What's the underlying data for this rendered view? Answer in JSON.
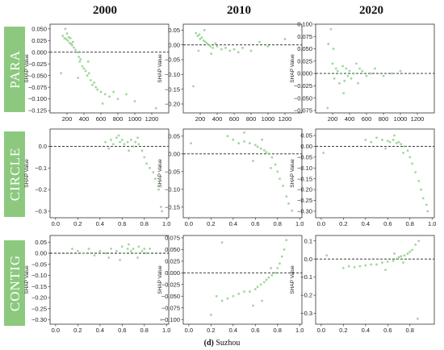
{
  "colors": {
    "point": "#8fd08a",
    "row_box": "#8cc97f",
    "zero_line": "#222222"
  },
  "caption": {
    "bold": "(d)",
    "text": " Suzhou"
  },
  "columns": [
    "2000",
    "2010",
    "2020"
  ],
  "rows": [
    "PARA",
    "CIRCLE",
    "CONTIG"
  ],
  "chart_data": [
    {
      "type": "scatter",
      "row": "PARA",
      "year": "2000",
      "ylabel": "SHAP Value",
      "xlim": [
        0,
        1400
      ],
      "ylim": [
        -0.13,
        0.06
      ],
      "xticks": [
        200,
        400,
        600,
        800,
        1000,
        1200
      ],
      "yticks": [
        0.05,
        0.025,
        0.0,
        -0.025,
        -0.05,
        -0.075,
        -0.1,
        -0.125
      ],
      "xtick_labels": [
        "200",
        "400",
        "600",
        "800",
        "1000",
        "1200"
      ],
      "ytick_labels": [
        "0.050",
        "0.025",
        "0.000",
        "−0.025",
        "−0.050",
        "−0.075",
        "−0.100",
        "−0.125"
      ],
      "points": [
        [
          150,
          0.035
        ],
        [
          170,
          0.03
        ],
        [
          190,
          0.028
        ],
        [
          200,
          0.04
        ],
        [
          210,
          0.025
        ],
        [
          220,
          0.032
        ],
        [
          230,
          0.02
        ],
        [
          240,
          0.03
        ],
        [
          250,
          0.018
        ],
        [
          260,
          0.015
        ],
        [
          270,
          0.022
        ],
        [
          280,
          0.01
        ],
        [
          300,
          0.005
        ],
        [
          320,
          0.0
        ],
        [
          340,
          -0.01
        ],
        [
          350,
          -0.02
        ],
        [
          360,
          -0.015
        ],
        [
          380,
          -0.03
        ],
        [
          400,
          -0.035
        ],
        [
          420,
          -0.04
        ],
        [
          440,
          -0.05
        ],
        [
          460,
          -0.045
        ],
        [
          480,
          -0.06
        ],
        [
          500,
          -0.07
        ],
        [
          520,
          -0.065
        ],
        [
          540,
          -0.075
        ],
        [
          560,
          -0.08
        ],
        [
          600,
          -0.085
        ],
        [
          650,
          -0.09
        ],
        [
          700,
          -0.095
        ],
        [
          750,
          -0.085
        ],
        [
          800,
          -0.1
        ],
        [
          900,
          -0.09
        ],
        [
          1000,
          -0.105
        ],
        [
          1250,
          -0.12
        ],
        [
          130,
          -0.045
        ],
        [
          180,
          0.05
        ],
        [
          330,
          -0.055
        ],
        [
          450,
          -0.02
        ],
        [
          620,
          -0.11
        ]
      ]
    },
    {
      "type": "scatter",
      "row": "PARA",
      "year": "2010",
      "ylabel": "SHAP Value",
      "xlim": [
        0,
        1400
      ],
      "ylim": [
        -0.23,
        0.07
      ],
      "xticks": [
        200,
        400,
        600,
        800,
        1000,
        1200
      ],
      "yticks": [
        0.05,
        0.0,
        -0.05,
        -0.1,
        -0.15,
        -0.2
      ],
      "xtick_labels": [
        "200",
        "400",
        "600",
        "800",
        "1000",
        "1200"
      ],
      "ytick_labels": [
        "0.05",
        "0.00",
        "−0.05",
        "−0.10",
        "−0.15",
        "−0.20"
      ],
      "points": [
        [
          150,
          0.04
        ],
        [
          170,
          0.03
        ],
        [
          190,
          0.035
        ],
        [
          200,
          0.02
        ],
        [
          220,
          0.025
        ],
        [
          240,
          0.015
        ],
        [
          260,
          0.01
        ],
        [
          280,
          0.005
        ],
        [
          300,
          0.0
        ],
        [
          320,
          -0.005
        ],
        [
          350,
          -0.01
        ],
        [
          380,
          0.005
        ],
        [
          400,
          -0.005
        ],
        [
          450,
          -0.015
        ],
        [
          500,
          -0.01
        ],
        [
          550,
          -0.02
        ],
        [
          600,
          -0.015
        ],
        [
          700,
          -0.01
        ],
        [
          800,
          -0.02
        ],
        [
          900,
          0.01
        ],
        [
          1000,
          -0.005
        ],
        [
          1200,
          0.02
        ],
        [
          120,
          -0.14
        ],
        [
          250,
          0.05
        ],
        [
          330,
          -0.03
        ],
        [
          650,
          -0.025
        ],
        [
          180,
          -0.02
        ]
      ]
    },
    {
      "type": "scatter",
      "row": "PARA",
      "year": "2020",
      "ylabel": "SHAP Value",
      "xlim": [
        0,
        1400
      ],
      "ylim": [
        -0.08,
        0.1
      ],
      "xticks": [
        200,
        400,
        600,
        800,
        1000,
        1200
      ],
      "yticks": [
        0.1,
        0.075,
        0.05,
        0.025,
        0.0,
        -0.025,
        -0.05,
        -0.075
      ],
      "xtick_labels": [
        "200",
        "400",
        "600",
        "800",
        "1000",
        "1200"
      ],
      "ytick_labels": [
        "0.100",
        "0.075",
        "0.050",
        "0.025",
        "0.000",
        "−0.025",
        "−0.050",
        "−0.075"
      ],
      "points": [
        [
          150,
          0.06
        ],
        [
          180,
          0.09
        ],
        [
          200,
          0.02
        ],
        [
          220,
          -0.01
        ],
        [
          240,
          0.01
        ],
        [
          260,
          0.005
        ],
        [
          280,
          -0.02
        ],
        [
          300,
          0.0
        ],
        [
          320,
          0.015
        ],
        [
          340,
          -0.015
        ],
        [
          360,
          0.01
        ],
        [
          380,
          -0.005
        ],
        [
          400,
          0.005
        ],
        [
          420,
          -0.01
        ],
        [
          450,
          0.0
        ],
        [
          480,
          0.02
        ],
        [
          500,
          -0.02
        ],
        [
          520,
          0.01
        ],
        [
          550,
          0.005
        ],
        [
          600,
          -0.005
        ],
        [
          650,
          0.0
        ],
        [
          700,
          0.01
        ],
        [
          800,
          -0.005
        ],
        [
          900,
          0.0
        ],
        [
          1000,
          0.005
        ],
        [
          1300,
          0.0
        ],
        [
          140,
          -0.07
        ],
        [
          210,
          0.05
        ],
        [
          330,
          -0.04
        ]
      ]
    },
    {
      "type": "scatter",
      "row": "CIRCLE",
      "year": "2000",
      "ylabel": "SHAP Value",
      "xlim": [
        -0.05,
        1.02
      ],
      "ylim": [
        -0.33,
        0.08
      ],
      "xticks": [
        0.0,
        0.2,
        0.4,
        0.6,
        0.8,
        1.0
      ],
      "yticks": [
        0.0,
        -0.1,
        -0.2,
        -0.3
      ],
      "xtick_labels": [
        "0.0",
        "0.2",
        "0.4",
        "0.6",
        "0.8",
        "1.0"
      ],
      "ytick_labels": [
        "0.0",
        "−0.1",
        "−0.2",
        "−0.3"
      ],
      "points": [
        [
          0.45,
          0.02
        ],
        [
          0.5,
          0.03
        ],
        [
          0.52,
          0.01
        ],
        [
          0.55,
          0.04
        ],
        [
          0.58,
          0.02
        ],
        [
          0.6,
          0.03
        ],
        [
          0.62,
          0.01
        ],
        [
          0.65,
          0.02
        ],
        [
          0.68,
          0.03
        ],
        [
          0.7,
          0.0
        ],
        [
          0.72,
          0.02
        ],
        [
          0.75,
          0.01
        ],
        [
          0.78,
          -0.02
        ],
        [
          0.8,
          -0.05
        ],
        [
          0.82,
          -0.08
        ],
        [
          0.85,
          -0.1
        ],
        [
          0.88,
          -0.12
        ],
        [
          0.9,
          -0.15
        ],
        [
          0.93,
          -0.2
        ],
        [
          0.95,
          -0.28
        ],
        [
          0.96,
          -0.3
        ],
        [
          0.48,
          -0.01
        ],
        [
          0.57,
          0.05
        ],
        [
          0.66,
          -0.02
        ],
        [
          0.74,
          0.04
        ]
      ]
    },
    {
      "type": "scatter",
      "row": "CIRCLE",
      "year": "2010",
      "ylabel": "SHAP Value",
      "xlim": [
        -0.05,
        1.02
      ],
      "ylim": [
        -0.18,
        0.07
      ],
      "xticks": [
        0.0,
        0.2,
        0.4,
        0.6,
        0.8,
        1.0
      ],
      "yticks": [
        0.05,
        0.0,
        -0.05,
        -0.1,
        -0.15
      ],
      "xtick_labels": [
        "0.0",
        "0.2",
        "0.4",
        "0.6",
        "0.8",
        "1.0"
      ],
      "ytick_labels": [
        "0.05",
        "0.00",
        "−0.05",
        "−0.10",
        "−0.15"
      ],
      "points": [
        [
          0.35,
          0.05
        ],
        [
          0.4,
          0.04
        ],
        [
          0.45,
          0.03
        ],
        [
          0.5,
          0.035
        ],
        [
          0.55,
          0.03
        ],
        [
          0.6,
          0.025
        ],
        [
          0.62,
          0.02
        ],
        [
          0.65,
          0.015
        ],
        [
          0.68,
          0.01
        ],
        [
          0.7,
          0.005
        ],
        [
          0.72,
          0.0
        ],
        [
          0.75,
          -0.01
        ],
        [
          0.78,
          -0.03
        ],
        [
          0.8,
          -0.05
        ],
        [
          0.82,
          -0.07
        ],
        [
          0.85,
          -0.09
        ],
        [
          0.88,
          -0.12
        ],
        [
          0.9,
          -0.14
        ],
        [
          0.93,
          -0.16
        ],
        [
          0.02,
          0.03
        ],
        [
          0.5,
          0.06
        ],
        [
          0.58,
          -0.02
        ],
        [
          0.66,
          0.04
        ],
        [
          0.74,
          -0.04
        ]
      ]
    },
    {
      "type": "scatter",
      "row": "CIRCLE",
      "year": "2020",
      "ylabel": "SHAP Value",
      "xlim": [
        -0.05,
        1.02
      ],
      "ylim": [
        -0.33,
        0.08
      ],
      "xticks": [
        0.0,
        0.2,
        0.4,
        0.6,
        0.8,
        1.0
      ],
      "yticks": [
        0.05,
        0.0,
        -0.05,
        -0.1,
        -0.15,
        -0.2,
        -0.25,
        -0.3
      ],
      "xtick_labels": [
        "0.0",
        "0.2",
        "0.4",
        "0.6",
        "0.8",
        "1.0"
      ],
      "ytick_labels": [
        "0.05",
        "0.00",
        "−0.05",
        "−0.10",
        "−0.15",
        "−0.20",
        "−0.25",
        "−0.30"
      ],
      "points": [
        [
          0.4,
          0.03
        ],
        [
          0.45,
          0.02
        ],
        [
          0.5,
          0.04
        ],
        [
          0.55,
          0.03
        ],
        [
          0.6,
          0.025
        ],
        [
          0.62,
          0.02
        ],
        [
          0.65,
          0.03
        ],
        [
          0.68,
          0.015
        ],
        [
          0.7,
          0.02
        ],
        [
          0.72,
          0.01
        ],
        [
          0.75,
          0.0
        ],
        [
          0.78,
          -0.02
        ],
        [
          0.8,
          -0.05
        ],
        [
          0.82,
          -0.08
        ],
        [
          0.85,
          -0.12
        ],
        [
          0.88,
          -0.16
        ],
        [
          0.9,
          -0.2
        ],
        [
          0.92,
          -0.24
        ],
        [
          0.95,
          -0.27
        ],
        [
          0.96,
          -0.3
        ],
        [
          0.02,
          -0.03
        ],
        [
          0.58,
          -0.01
        ],
        [
          0.66,
          0.05
        ],
        [
          0.74,
          -0.03
        ]
      ]
    },
    {
      "type": "scatter",
      "row": "CONTIG",
      "year": "2000",
      "ylabel": "SHAP Value",
      "xlim": [
        -0.05,
        1.02
      ],
      "ylim": [
        -0.32,
        0.08
      ],
      "xticks": [
        0.0,
        0.2,
        0.4,
        0.6,
        0.8,
        1.0
      ],
      "yticks": [
        0.05,
        0.0,
        -0.05,
        -0.1,
        -0.15,
        -0.2,
        -0.25,
        -0.3
      ],
      "xtick_labels": [
        "0.0",
        "0.2",
        "0.4",
        "0.6",
        "0.8",
        "1.0"
      ],
      "ytick_labels": [
        "0.05",
        "0.00",
        "−0.05",
        "−0.10",
        "−0.15",
        "−0.20",
        "−0.25",
        "−0.30"
      ],
      "points": [
        [
          0.2,
          0.01
        ],
        [
          0.25,
          0.0
        ],
        [
          0.3,
          0.02
        ],
        [
          0.35,
          -0.01
        ],
        [
          0.4,
          0.01
        ],
        [
          0.45,
          0.0
        ],
        [
          0.5,
          0.02
        ],
        [
          0.55,
          0.01
        ],
        [
          0.6,
          0.03
        ],
        [
          0.62,
          0.0
        ],
        [
          0.65,
          0.02
        ],
        [
          0.68,
          0.01
        ],
        [
          0.7,
          0.02
        ],
        [
          0.72,
          0.0
        ],
        [
          0.75,
          0.03
        ],
        [
          0.78,
          0.01
        ],
        [
          0.8,
          0.02
        ],
        [
          0.82,
          0.0
        ],
        [
          0.85,
          0.02
        ],
        [
          0.58,
          -0.03
        ],
        [
          0.66,
          0.04
        ],
        [
          0.74,
          -0.02
        ],
        [
          0.95,
          -0.3
        ],
        [
          0.15,
          0.02
        ],
        [
          0.48,
          -0.02
        ]
      ]
    },
    {
      "type": "scatter",
      "row": "CONTIG",
      "year": "2010",
      "ylabel": "SHAP Value",
      "xlim": [
        -0.05,
        1.02
      ],
      "ylim": [
        -0.11,
        0.08
      ],
      "xticks": [
        0.0,
        0.2,
        0.4,
        0.6,
        0.8,
        1.0
      ],
      "yticks": [
        0.075,
        0.05,
        0.025,
        0.0,
        -0.025,
        -0.05,
        -0.075,
        -0.1
      ],
      "xtick_labels": [
        "0.0",
        "0.2",
        "0.4",
        "0.6",
        "0.8",
        "1.0"
      ],
      "ytick_labels": [
        "0.075",
        "0.050",
        "0.025",
        "0.000",
        "−0.025",
        "−0.050",
        "−0.075",
        "−0.100"
      ],
      "points": [
        [
          0.25,
          -0.05
        ],
        [
          0.3,
          -0.06
        ],
        [
          0.35,
          -0.055
        ],
        [
          0.4,
          -0.05
        ],
        [
          0.45,
          -0.045
        ],
        [
          0.5,
          -0.04
        ],
        [
          0.55,
          -0.04
        ],
        [
          0.6,
          -0.035
        ],
        [
          0.62,
          -0.03
        ],
        [
          0.65,
          -0.025
        ],
        [
          0.68,
          -0.02
        ],
        [
          0.7,
          -0.015
        ],
        [
          0.72,
          -0.01
        ],
        [
          0.75,
          -0.005
        ],
        [
          0.78,
          0.0
        ],
        [
          0.8,
          0.01
        ],
        [
          0.82,
          0.02
        ],
        [
          0.84,
          0.035
        ],
        [
          0.86,
          0.05
        ],
        [
          0.88,
          0.07
        ],
        [
          0.3,
          0.065
        ],
        [
          0.2,
          -0.09
        ],
        [
          0.58,
          -0.07
        ],
        [
          0.66,
          -0.06
        ],
        [
          0.74,
          0.01
        ]
      ]
    },
    {
      "type": "scatter",
      "row": "CONTIG",
      "year": "2020",
      "ylabel": "SHAP Value",
      "xlim": [
        -0.05,
        1.02
      ],
      "ylim": [
        -0.36,
        0.13
      ],
      "xticks": [
        0.0,
        0.2,
        0.4,
        0.6,
        0.8
      ],
      "yticks": [
        0.1,
        0.0,
        -0.1,
        -0.2,
        -0.3
      ],
      "xtick_labels": [
        "0.0",
        "0.2",
        "0.4",
        "0.6",
        "0.8"
      ],
      "ytick_labels": [
        "0.1",
        "0.0",
        "−0.1",
        "−0.2",
        "−0.3"
      ],
      "points": [
        [
          0.2,
          -0.05
        ],
        [
          0.25,
          -0.04
        ],
        [
          0.3,
          -0.045
        ],
        [
          0.35,
          -0.04
        ],
        [
          0.4,
          -0.035
        ],
        [
          0.45,
          -0.03
        ],
        [
          0.5,
          -0.03
        ],
        [
          0.55,
          -0.02
        ],
        [
          0.6,
          -0.015
        ],
        [
          0.65,
          -0.01
        ],
        [
          0.68,
          0.0
        ],
        [
          0.7,
          0.01
        ],
        [
          0.72,
          0.015
        ],
        [
          0.75,
          0.02
        ],
        [
          0.78,
          0.03
        ],
        [
          0.8,
          0.04
        ],
        [
          0.82,
          0.05
        ],
        [
          0.85,
          0.08
        ],
        [
          0.88,
          0.1
        ],
        [
          0.05,
          0.02
        ],
        [
          0.58,
          -0.06
        ],
        [
          0.66,
          0.03
        ],
        [
          0.74,
          -0.02
        ],
        [
          0.87,
          -0.33
        ]
      ]
    }
  ]
}
